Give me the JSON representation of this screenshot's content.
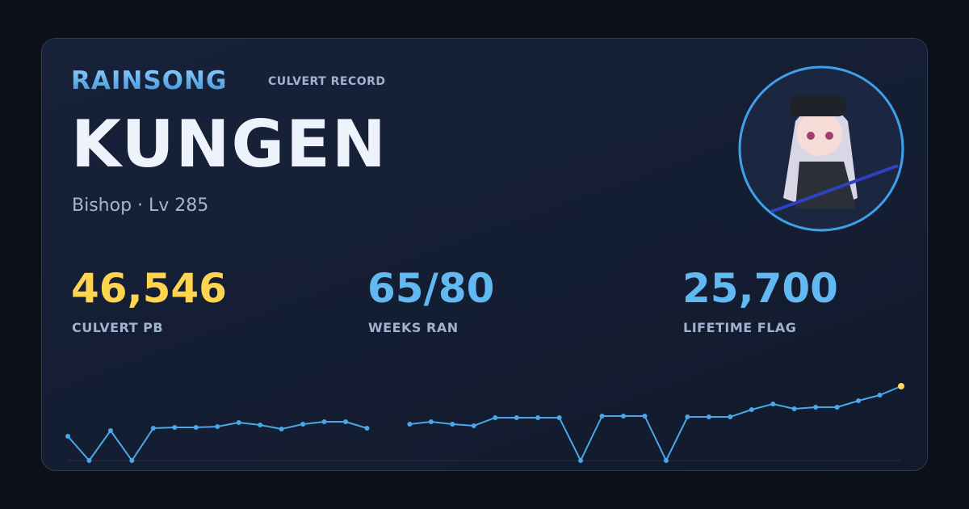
{
  "header": {
    "brand": "RAINSONG",
    "tag": "CULVERT RECORD"
  },
  "profile": {
    "name": "KUNGEN",
    "subtitle": "Bishop · Lv 285"
  },
  "stats": [
    {
      "value": "46,546",
      "label": "CULVERT PB",
      "color": "#ffd54f"
    },
    {
      "value": "65/80",
      "label": "WEEKS RAN",
      "color": "#62b8f0"
    },
    {
      "value": "25,700",
      "label": "LIFETIME FLAG",
      "color": "#62b8f0"
    }
  ],
  "chart_data": {
    "type": "line",
    "color": "#4aa8e8",
    "highlight_color": "#ffd866",
    "values": [
      15180,
      0,
      18720,
      0,
      20240,
      20740,
      20740,
      21250,
      23780,
      22260,
      19730,
      22770,
      24290,
      24290,
      20240,
      null,
      22770,
      24290,
      22770,
      21760,
      26820,
      26820,
      26820,
      26820,
      0,
      27830,
      27830,
      27830,
      0,
      27320,
      27320,
      27320,
      31880,
      35420,
      32380,
      33390,
      33390,
      37440,
      40980,
      46546
    ]
  }
}
